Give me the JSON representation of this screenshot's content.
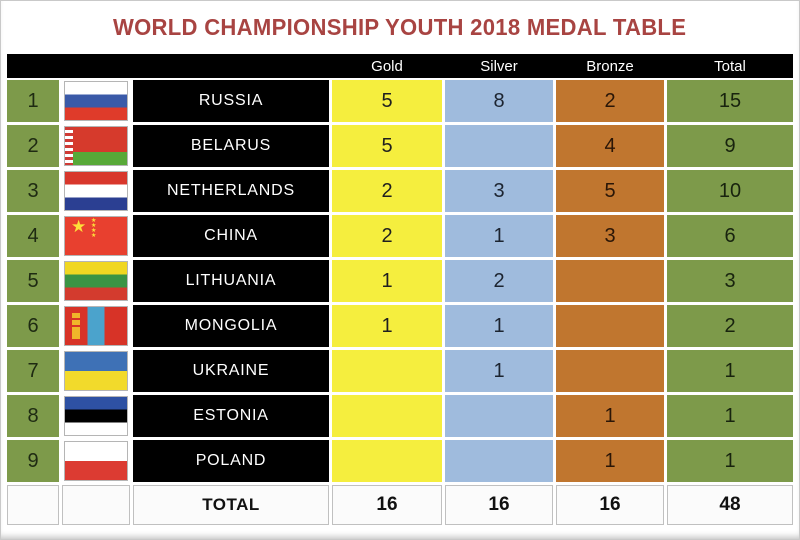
{
  "title": "WORLD CHAMPIONSHIP YOUTH 2018 MEDAL TABLE",
  "colors": {
    "title_red": "#a84442",
    "gold_cell": "#f5ee3e",
    "silver_cell": "#9fbbdd",
    "bronze_cell": "#c0762f",
    "green_cell": "#7d9a4a",
    "header_black": "#000000"
  },
  "table": {
    "columns": [
      "Gold",
      "Silver",
      "Bronze",
      "Total"
    ],
    "rows": [
      {
        "rank": "1",
        "country": "RUSSIA",
        "flag": "russia",
        "gold": "5",
        "silver": "8",
        "bronze": "2",
        "total": "15"
      },
      {
        "rank": "2",
        "country": "BELARUS",
        "flag": "belarus",
        "gold": "5",
        "silver": "",
        "bronze": "4",
        "total": "9"
      },
      {
        "rank": "3",
        "country": "NETHERLANDS",
        "flag": "netherlands",
        "gold": "2",
        "silver": "3",
        "bronze": "5",
        "total": "10"
      },
      {
        "rank": "4",
        "country": "CHINA",
        "flag": "china",
        "gold": "2",
        "silver": "1",
        "bronze": "3",
        "total": "6"
      },
      {
        "rank": "5",
        "country": "LITHUANIA",
        "flag": "lithuania",
        "gold": "1",
        "silver": "2",
        "bronze": "",
        "total": "3"
      },
      {
        "rank": "6",
        "country": "MONGOLIA",
        "flag": "mongolia",
        "gold": "1",
        "silver": "1",
        "bronze": "",
        "total": "2"
      },
      {
        "rank": "7",
        "country": "UKRAINE",
        "flag": "ukraine",
        "gold": "",
        "silver": "1",
        "bronze": "",
        "total": "1"
      },
      {
        "rank": "8",
        "country": "ESTONIA",
        "flag": "estonia",
        "gold": "",
        "silver": "",
        "bronze": "1",
        "total": "1"
      },
      {
        "rank": "9",
        "country": "POLAND",
        "flag": "poland",
        "gold": "",
        "silver": "",
        "bronze": "1",
        "total": "1"
      }
    ],
    "total_row": {
      "label": "TOTAL",
      "gold": "16",
      "silver": "16",
      "bronze": "16",
      "total": "48"
    }
  }
}
